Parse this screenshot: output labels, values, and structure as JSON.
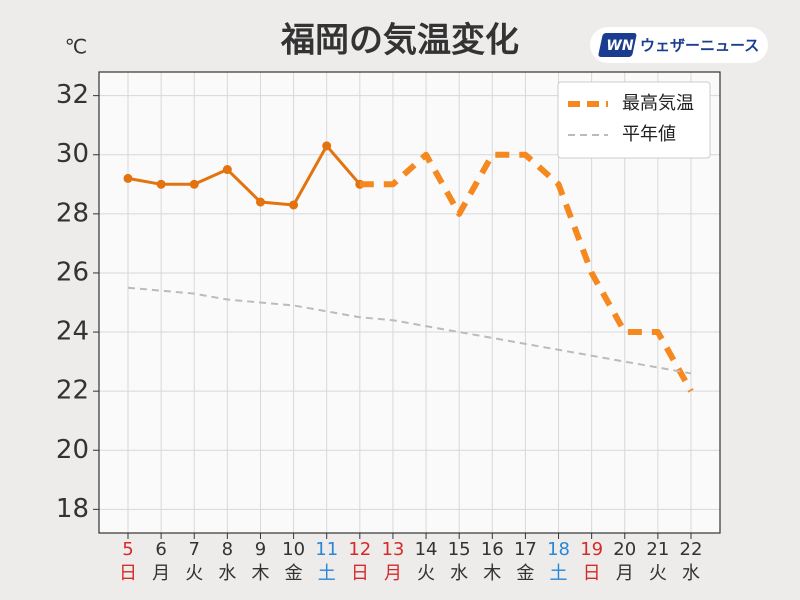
{
  "chart_data": {
    "type": "line",
    "title": "福岡の気温変化",
    "y_unit": "℃",
    "brand": {
      "mark": "WN",
      "name": "ウェザーニュース"
    },
    "categories": [
      "5",
      "6",
      "7",
      "8",
      "9",
      "10",
      "11",
      "12",
      "13",
      "14",
      "15",
      "16",
      "17",
      "18",
      "19",
      "20",
      "21",
      "22"
    ],
    "weekdays": [
      "日",
      "月",
      "火",
      "水",
      "木",
      "金",
      "土",
      "日",
      "月",
      "火",
      "水",
      "木",
      "金",
      "土",
      "日",
      "月",
      "火",
      "水"
    ],
    "label_colors": [
      "#d62a2a",
      "#333333",
      "#333333",
      "#333333",
      "#333333",
      "#333333",
      "#2a86d6",
      "#d62a2a",
      "#d62a2a",
      "#333333",
      "#333333",
      "#333333",
      "#333333",
      "#2a86d6",
      "#d62a2a",
      "#333333",
      "#333333",
      "#333333"
    ],
    "series": [
      {
        "color": "#e2730f",
        "dash": false,
        "markers": true,
        "width": 3,
        "values": [
          29.2,
          29.0,
          29.0,
          29.5,
          28.4,
          28.3,
          30.3,
          29.0,
          null,
          null,
          null,
          null,
          null,
          null,
          null,
          null,
          null,
          null
        ]
      },
      {
        "name": "最高気温",
        "color": "#f5881e",
        "dash": true,
        "markers": false,
        "width": 6,
        "values": [
          null,
          null,
          null,
          null,
          null,
          null,
          null,
          29.0,
          29.0,
          30.0,
          28.0,
          30.0,
          30.0,
          29.0,
          26.0,
          24.0,
          24.0,
          22.0
        ]
      },
      {
        "name": "平年値",
        "color": "#bbbbbb",
        "dash": true,
        "markers": false,
        "width": 2,
        "values": [
          25.5,
          25.4,
          25.3,
          25.1,
          25.0,
          24.9,
          24.7,
          24.5,
          24.4,
          24.2,
          24.0,
          23.8,
          23.6,
          23.4,
          23.2,
          23.0,
          22.8,
          22.6
        ]
      }
    ],
    "ylim": [
      17.2,
      32.8
    ],
    "yticks": [
      18,
      20,
      22,
      24,
      26,
      28,
      30,
      32
    ],
    "grid": true,
    "legend": "upper right"
  }
}
